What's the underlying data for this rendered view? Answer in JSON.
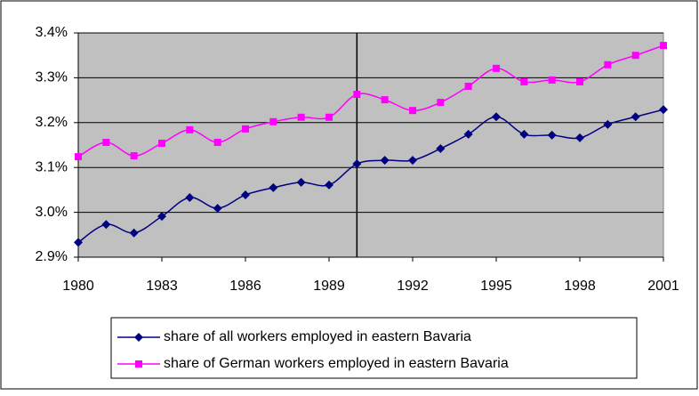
{
  "chart_data": {
    "type": "line",
    "x": [
      1980,
      1981,
      1982,
      1983,
      1984,
      1985,
      1986,
      1987,
      1988,
      1989,
      1990,
      1991,
      1992,
      1993,
      1994,
      1995,
      1996,
      1997,
      1998,
      1999,
      2000,
      2001
    ],
    "series": [
      {
        "name": "share of all workers employed in eastern Bavaria",
        "color": "#000080",
        "marker": "diamond",
        "values": [
          2.933,
          2.973,
          2.954,
          2.991,
          3.033,
          3.009,
          3.039,
          3.055,
          3.067,
          3.061,
          3.108,
          3.116,
          3.116,
          3.142,
          3.174,
          3.213,
          3.174,
          3.172,
          3.166,
          3.196,
          3.213,
          3.229
        ]
      },
      {
        "name": "share of German workers employed in eastern Bavaria",
        "color": "#ff00ff",
        "marker": "square",
        "values": [
          3.124,
          3.156,
          3.126,
          3.154,
          3.184,
          3.156,
          3.186,
          3.202,
          3.212,
          3.212,
          3.263,
          3.251,
          3.227,
          3.245,
          3.281,
          3.321,
          3.291,
          3.295,
          3.291,
          3.329,
          3.35,
          3.372
        ]
      }
    ],
    "xlim": [
      1980,
      2001
    ],
    "xticks": [
      1980,
      1983,
      1986,
      1989,
      1992,
      1995,
      1998,
      2001
    ],
    "ylim": [
      2.9,
      3.4
    ],
    "yticks": [
      {
        "value": 2.9,
        "label": "2.9%"
      },
      {
        "value": 3.0,
        "label": "3.0%"
      },
      {
        "value": 3.1,
        "label": "3.1%"
      },
      {
        "value": 3.2,
        "label": "3.2%"
      },
      {
        "value": 3.3,
        "label": "3.3%"
      },
      {
        "value": 3.4,
        "label": "3.4%"
      }
    ],
    "grid": true,
    "vline": 1990,
    "plot_background": "#c0c0c0",
    "smooth": true,
    "legend": "bottom"
  }
}
